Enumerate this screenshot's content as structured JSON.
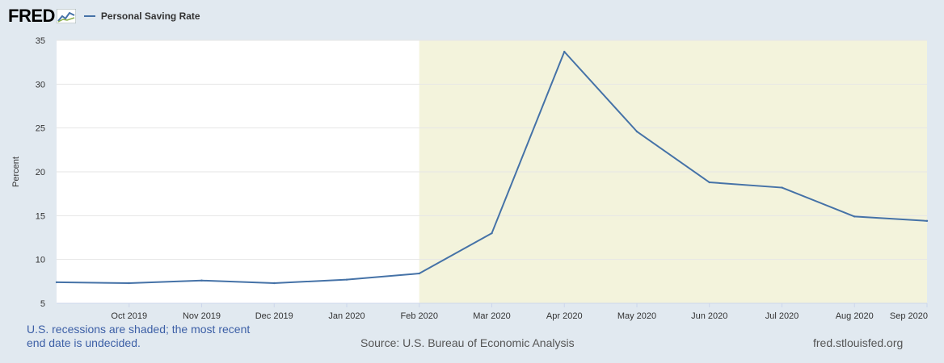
{
  "header": {
    "logo": "FRED",
    "legend_label": "Personal Saving Rate"
  },
  "footer": {
    "note": "U.S. recessions are shaded; the most recent end date is undecided.",
    "source": "Source: U.S. Bureau of Economic Analysis",
    "url": "fred.stlouisfed.org"
  },
  "colors": {
    "line": "#4572a7",
    "recession": "#f3f3dc",
    "background": "#e1e9f0"
  },
  "chart_data": {
    "type": "line",
    "title": "",
    "xlabel": "",
    "ylabel": "Percent",
    "ylim": [
      5,
      35
    ],
    "yticks": [
      5,
      10,
      15,
      20,
      25,
      30,
      35
    ],
    "x_tick_labels": [
      "Oct 2019",
      "Nov 2019",
      "Dec 2019",
      "Jan 2020",
      "Feb 2020",
      "Mar 2020",
      "Apr 2020",
      "May 2020",
      "Jun 2020",
      "Jul 2020",
      "Aug 2020",
      "Sep 2020"
    ],
    "grid": true,
    "recession_shading": {
      "start": "2020-02",
      "end": "2020-09"
    },
    "series": [
      {
        "name": "Personal Saving Rate",
        "x": [
          "2019-09",
          "2019-10",
          "2019-11",
          "2019-12",
          "2020-01",
          "2020-02",
          "2020-03",
          "2020-04",
          "2020-05",
          "2020-06",
          "2020-07",
          "2020-08",
          "2020-09"
        ],
        "values": [
          7.4,
          7.3,
          7.6,
          7.3,
          7.7,
          8.4,
          13.0,
          33.7,
          24.6,
          18.8,
          18.2,
          14.9,
          14.4
        ]
      }
    ]
  }
}
